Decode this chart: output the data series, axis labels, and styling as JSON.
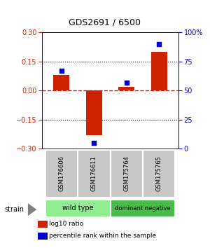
{
  "title": "GDS2691 / 6500",
  "samples": [
    "GSM176606",
    "GSM176611",
    "GSM175764",
    "GSM175765"
  ],
  "log10_ratio": [
    0.08,
    -0.23,
    0.02,
    0.2
  ],
  "percentile_rank": [
    67,
    5,
    57,
    90
  ],
  "ylim_left": [
    -0.3,
    0.3
  ],
  "ylim_right": [
    0,
    100
  ],
  "yticks_left": [
    -0.3,
    -0.15,
    0,
    0.15,
    0.3
  ],
  "yticks_right": [
    0,
    25,
    50,
    75,
    100
  ],
  "ytick_labels_right": [
    "0",
    "25",
    "50",
    "75",
    "100%"
  ],
  "hlines": [
    -0.15,
    0.0,
    0.15
  ],
  "hline_colors": [
    "black",
    "red",
    "black"
  ],
  "hline_styles": [
    "dotted",
    "dashed",
    "dotted"
  ],
  "groups": [
    {
      "label": "wild type",
      "samples": [
        0,
        1
      ],
      "color": "#90EE90"
    },
    {
      "label": "dominant negative",
      "samples": [
        2,
        3
      ],
      "color": "#4CBB4C"
    }
  ],
  "bar_color": "#CC2200",
  "scatter_color": "#0000CC",
  "bar_width": 0.5,
  "scatter_size": 25,
  "strain_label": "strain",
  "legend_items": [
    {
      "label": "log10 ratio",
      "color": "#CC2200"
    },
    {
      "label": "percentile rank within the sample",
      "color": "#0000CC"
    }
  ],
  "left_axis_color": "#CC2200",
  "right_axis_color": "#0000CC",
  "bg_color": "#ffffff",
  "plot_bg": "#ffffff",
  "sample_area_color": "#c8c8c8",
  "sample_border_color": "#ffffff"
}
